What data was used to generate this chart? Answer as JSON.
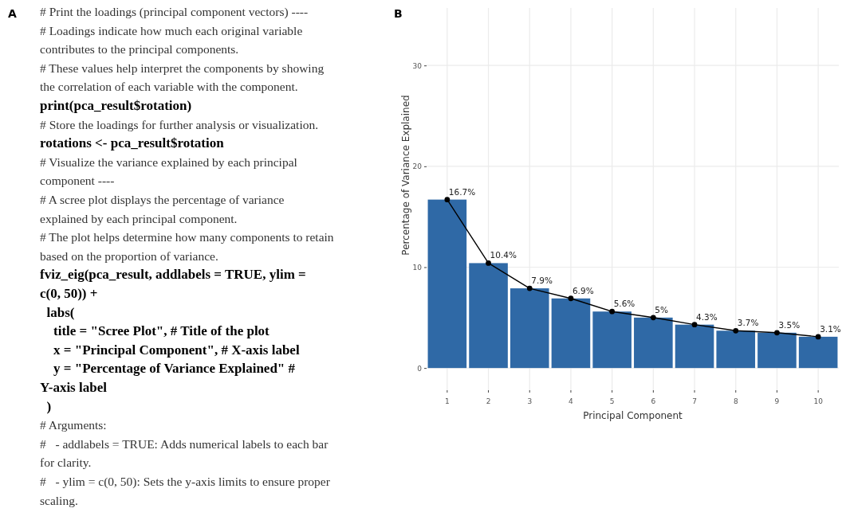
{
  "chart_data": [
    {
      "type": "other",
      "title": "A",
      "annotations": [
        "# Print the loadings (principal component vectors) ----",
        "# Loadings indicate how much each original variable",
        "contributes to the principal components.",
        "# These values help interpret the components by showing",
        "the correlation of each variable with the component.",
        "print(pca_result$rotation)",
        "# Store the loadings for further analysis or visualization.",
        "rotations <- pca_result$rotation",
        "# Visualize the variance explained by each principal",
        "component ----",
        "# A scree plot displays the percentage of variance",
        "explained by each principal component.",
        "# The plot helps determine how many components to retain",
        "based on the proportion of variance.",
        "fviz_eig(pca_result, addlabels = TRUE, ylim =",
        "c(0, 50)) +",
        "  labs(",
        "    title = \"Scree Plot\", # Title of the plot",
        "    x = \"Principal Component\", # X-axis label",
        "    y = \"Percentage of Variance Explained\" #",
        "Y-axis label",
        "  )",
        "# Arguments:",
        "#   - addlabels = TRUE: Adds numerical labels to each bar",
        "for clarity.",
        "#   - ylim = c(0, 50): Sets the y-axis limits to ensure proper",
        "scaling."
      ]
    },
    {
      "type": "bar",
      "title": "B",
      "xlabel": "Principal Component",
      "ylabel": "Percentage of Variance Explained",
      "categories": [
        "1",
        "2",
        "3",
        "4",
        "5",
        "6",
        "7",
        "8",
        "9",
        "10"
      ],
      "series": [
        {
          "type": "bar",
          "color": "#2f69a6",
          "values": [
            16.7,
            10.4,
            7.9,
            6.9,
            5.6,
            5,
            4.3,
            3.7,
            3.5,
            3.1
          ],
          "value_labels": [
            "16.7%",
            "10.4%",
            "7.9%",
            "6.9%",
            "5.6%",
            "5%",
            "4.3%",
            "3.7%",
            "3.5%",
            "3.1%"
          ]
        },
        {
          "type": "line",
          "color": "#000000",
          "marker": "circle",
          "values": [
            16.7,
            10.4,
            7.9,
            6.9,
            5.6,
            5,
            4.3,
            3.7,
            3.5,
            3.1
          ]
        }
      ],
      "ylim": [
        -2.2,
        35.7
      ],
      "yticks": [
        0,
        10,
        20,
        30
      ],
      "grid": true
    }
  ]
}
